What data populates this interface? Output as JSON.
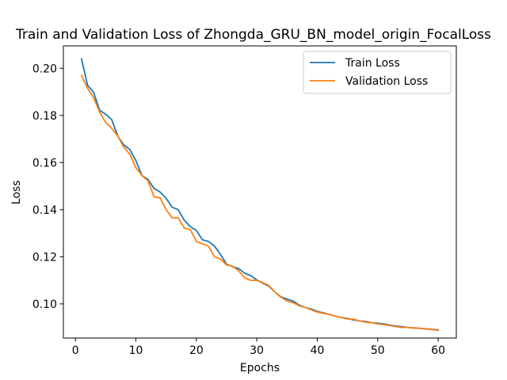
{
  "chart_data": {
    "type": "line",
    "title": "Train and Validation Loss of Zhongda_GRU_BN_model_origin_FocalLoss",
    "xlabel": "Epochs",
    "ylabel": "Loss",
    "xlim": [
      -2,
      63
    ],
    "ylim": [
      0.0855,
      0.2095
    ],
    "xticks": [
      "0",
      "10",
      "20",
      "30",
      "40",
      "50",
      "60"
    ],
    "yticks": [
      "0.10",
      "0.12",
      "0.14",
      "0.16",
      "0.18",
      "0.20"
    ],
    "grid": false,
    "legend_position": "top-right",
    "x": [
      1,
      2,
      3,
      4,
      5,
      6,
      7,
      8,
      9,
      10,
      11,
      12,
      13,
      14,
      15,
      16,
      17,
      18,
      19,
      20,
      21,
      22,
      23,
      24,
      25,
      26,
      27,
      28,
      29,
      30,
      31,
      32,
      33,
      34,
      35,
      36,
      37,
      38,
      39,
      40,
      41,
      42,
      43,
      44,
      45,
      46,
      47,
      48,
      49,
      50,
      51,
      52,
      53,
      54,
      55,
      56,
      57,
      58,
      59,
      60
    ],
    "series": [
      {
        "name": "Train Loss",
        "color": "#1f77b4",
        "values": [
          0.204,
          0.1928,
          0.1898,
          0.1822,
          0.1805,
          0.1782,
          0.1712,
          0.1675,
          0.1655,
          0.1608,
          0.1545,
          0.1528,
          0.149,
          0.1475,
          0.1448,
          0.141,
          0.14,
          0.1355,
          0.1328,
          0.1312,
          0.1272,
          0.1265,
          0.1245,
          0.121,
          0.1168,
          0.1158,
          0.115,
          0.113,
          0.112,
          0.1102,
          0.1088,
          0.1075,
          0.105,
          0.103,
          0.102,
          0.1012,
          0.0995,
          0.0985,
          0.0978,
          0.0968,
          0.0962,
          0.0955,
          0.0948,
          0.0942,
          0.0938,
          0.0932,
          0.0928,
          0.0925,
          0.092,
          0.0918,
          0.0915,
          0.091,
          0.0906,
          0.0903,
          0.09,
          0.0898,
          0.0896,
          0.0894,
          0.0892,
          0.089
        ]
      },
      {
        "name": "Validation Loss",
        "color": "#ff7f0e",
        "values": [
          0.197,
          0.1915,
          0.1875,
          0.1815,
          0.177,
          0.1745,
          0.1712,
          0.1665,
          0.1635,
          0.1578,
          0.1545,
          0.1522,
          0.1455,
          0.145,
          0.14,
          0.1365,
          0.1365,
          0.1322,
          0.1315,
          0.1265,
          0.1255,
          0.1245,
          0.12,
          0.119,
          0.1165,
          0.116,
          0.114,
          0.111,
          0.11,
          0.11,
          0.109,
          0.1078,
          0.105,
          0.1028,
          0.1012,
          0.1005,
          0.0992,
          0.0985,
          0.0975,
          0.0965,
          0.096,
          0.0955,
          0.0948,
          0.0942,
          0.0936,
          0.0935,
          0.0928,
          0.0922,
          0.092,
          0.0915,
          0.0912,
          0.0908,
          0.0904,
          0.09,
          0.09,
          0.0897,
          0.0897,
          0.0893,
          0.0891,
          0.0888
        ]
      }
    ]
  }
}
